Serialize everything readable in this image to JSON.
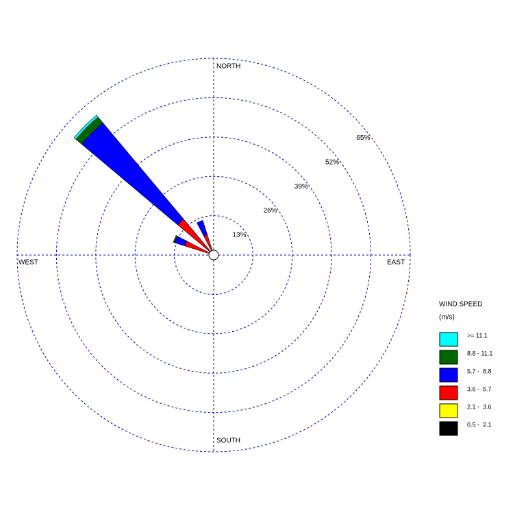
{
  "chart_data": {
    "type": "windrose",
    "x": [
      0,
      22.5,
      45,
      67.5,
      90,
      112.5,
      135,
      157.5,
      180,
      202.5,
      225,
      247.5,
      270,
      292.5,
      315,
      337.5
    ],
    "series": [
      {
        "name": "0.5 -  2.1",
        "color": "#000000",
        "values": [
          0,
          0,
          0,
          0,
          0,
          0,
          0,
          0,
          0,
          0,
          0,
          0,
          0,
          0,
          0,
          0
        ]
      },
      {
        "name": "2.1 -  3.6",
        "color": "#ffff00",
        "values": [
          0,
          0,
          0,
          0,
          0,
          0,
          0,
          0,
          0,
          0,
          0,
          0,
          0,
          0,
          0.5,
          0
        ]
      },
      {
        "name": "3.6 -  5.7",
        "color": "#ff0000",
        "values": [
          0,
          0,
          0,
          0,
          0,
          0,
          0,
          0,
          0,
          0,
          0,
          0,
          0,
          10,
          15,
          7
        ]
      },
      {
        "name": "5.7 -  8.8",
        "color": "#0000ff",
        "values": [
          0,
          0,
          0,
          0,
          0,
          0,
          0,
          0,
          0,
          0,
          0,
          0,
          0,
          3.5,
          41.5,
          5
        ]
      },
      {
        "name": "8.8 - 11.1",
        "color": "#006400",
        "values": [
          0,
          0,
          0,
          0,
          0,
          0,
          0,
          0,
          0,
          0,
          0,
          0,
          0,
          0.5,
          2.5,
          0
        ]
      },
      {
        "name": ">= 11.1",
        "color": "#00ffff",
        "values": [
          0,
          0,
          0,
          0,
          0,
          0,
          0,
          0,
          0,
          0,
          0,
          0,
          0,
          0,
          0.8,
          0
        ]
      }
    ],
    "ylim": [
      0,
      65
    ],
    "yticks": [
      {
        "value": 13,
        "label": "13%"
      },
      {
        "value": 26,
        "label": "26%"
      },
      {
        "value": 39,
        "label": "39%"
      },
      {
        "value": 52,
        "label": "52%"
      },
      {
        "value": 65,
        "label": "65%"
      }
    ],
    "compass_labels": [
      "NORTH",
      "EAST",
      "SOUTH",
      "WEST"
    ],
    "legend_title": "WIND SPEED",
    "legend_unit": "(m/s)",
    "grid": true
  }
}
